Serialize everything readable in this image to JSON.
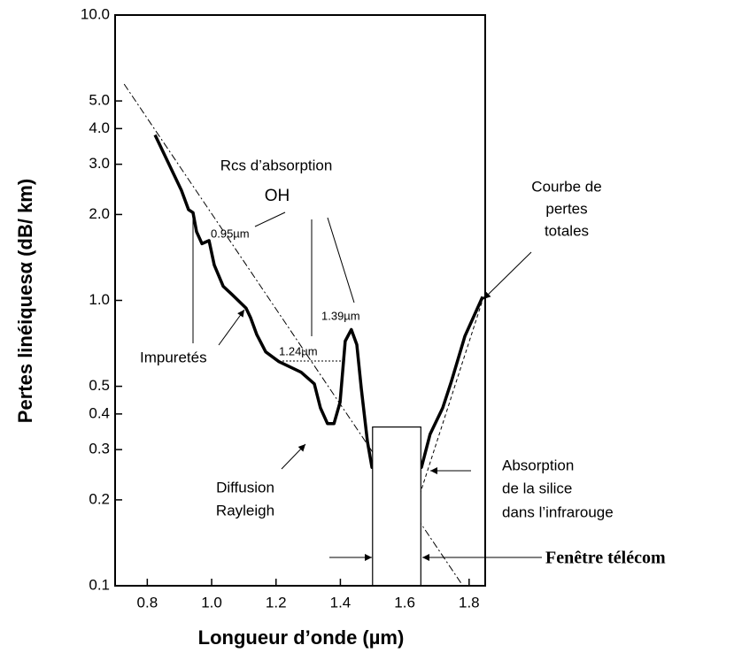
{
  "chart_data": {
    "type": "line",
    "xlabel": "Longueur d’onde (µm)",
    "ylabel": "Pertes linéiquesα (dB/ km)",
    "xlim": [
      0.7,
      1.85
    ],
    "xticks": [
      0.8,
      {
        "value": 1.0,
        "label": "1.0"
      },
      1.2,
      1.4,
      1.6,
      1.8
    ],
    "ylim": [
      0.1,
      10
    ],
    "ylog": true,
    "yticks": [
      {
        "value": 10,
        "label": "10.0"
      },
      {
        "value": 5,
        "label": "5.0"
      },
      {
        "value": 4,
        "label": "4.0"
      },
      {
        "value": 3,
        "label": "3.0"
      },
      {
        "value": 2,
        "label": "2.0"
      },
      {
        "value": 1,
        "label": "1.0"
      },
      0.5,
      0.4,
      0.3,
      0.2,
      0.1
    ],
    "series": [
      {
        "color": "#000000",
        "style": "solid",
        "x": [
          0.824,
          0.906,
          0.928,
          0.942,
          0.953,
          0.97,
          0.992,
          1.008,
          1.036,
          1.063,
          1.107,
          1.121,
          1.14,
          1.168,
          1.209,
          1.278,
          1.319,
          1.338,
          1.36,
          1.38,
          1.399,
          1.415,
          1.434,
          1.451,
          1.465,
          1.484,
          1.498,
          1.652,
          1.679,
          1.718,
          1.745,
          1.787,
          1.842
        ],
        "values": [
          3.8,
          2.43,
          2.08,
          2.03,
          1.74,
          1.58,
          1.62,
          1.33,
          1.12,
          1.05,
          0.94,
          0.87,
          0.76,
          0.66,
          0.61,
          0.56,
          0.51,
          0.42,
          0.37,
          0.37,
          0.44,
          0.72,
          0.79,
          0.7,
          0.49,
          0.32,
          0.26,
          0.26,
          0.34,
          0.42,
          0.52,
          0.75,
          1.03
        ]
      },
      {
        "color": "#000000",
        "style": "dashdot",
        "x": [
          0.728,
          1.778
        ],
        "values": [
          5.73,
          0.101
        ]
      },
      {
        "color": "#000000",
        "style": "dashed",
        "x": [
          1.635,
          1.85
        ],
        "values": [
          0.19,
          1.07
        ]
      }
    ],
    "window": {
      "x": [
        1.5,
        1.65
      ],
      "top": 0.36
    },
    "annotations": {
      "peaks_title": "Rcs d’absorption",
      "oh": "OH",
      "p095": "0.95µm",
      "p124": "1.24µm",
      "p139": "1.39µm",
      "impurities": "Impuretés",
      "total": [
        "Courbe de",
        "pertes",
        "totales"
      ],
      "infrared": [
        "Absorption",
        "de la silice",
        "dans l’infrarouge"
      ],
      "rayleigh": [
        "Diffusion",
        "Rayleigh"
      ],
      "window_label": "Fenêtre télécom"
    }
  }
}
